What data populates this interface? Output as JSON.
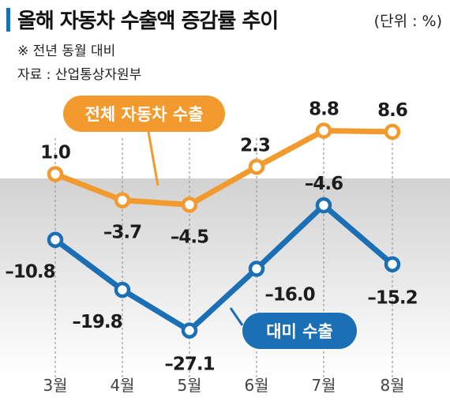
{
  "title": "올해 자동차 수출액 증감률 추이",
  "unit": "(단위 : %)",
  "note": "※ 전년 동월 대비",
  "source": "자료 : 산업통상자원부",
  "colors": {
    "orange": "#f29a2e",
    "blue": "#1a6fb5",
    "band": "#dcdcdc"
  },
  "chart_data": {
    "type": "line",
    "categories": [
      "3월",
      "4월",
      "5월",
      "6월",
      "7월",
      "8월"
    ],
    "series": [
      {
        "name": "전체 자동차 수출",
        "color": "#f29a2e",
        "values": [
          1.0,
          -3.7,
          -4.5,
          2.3,
          8.8,
          8.6
        ],
        "labels": [
          "1.0",
          "–3.7",
          "–4.5",
          "2.3",
          "8.8",
          "8.6"
        ]
      },
      {
        "name": "대미 수출",
        "color": "#1a6fb5",
        "values": [
          -10.8,
          -19.8,
          -27.1,
          -16.0,
          -4.6,
          -15.2
        ],
        "labels": [
          "–10.8",
          "–19.8",
          "–27.1",
          "–16.0",
          "–4.6",
          "–15.2"
        ]
      }
    ]
  }
}
